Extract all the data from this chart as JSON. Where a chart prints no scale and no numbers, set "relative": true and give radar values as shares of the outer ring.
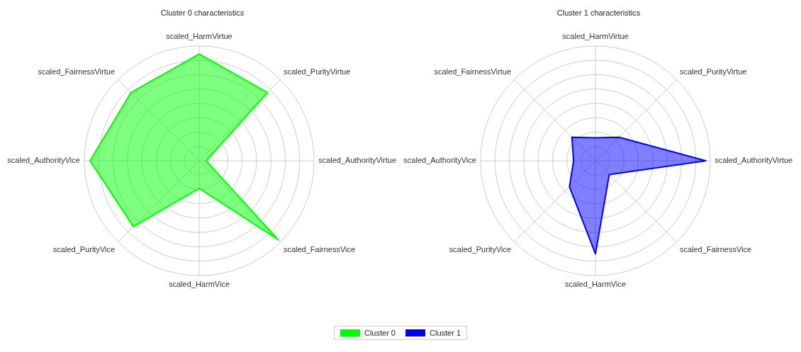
{
  "chart_data": [
    {
      "type": "radar",
      "title": "Cluster 0 characteristics",
      "relative": true,
      "grid": true,
      "legend": "bottom",
      "marker": "none",
      "categories": [
        "scaled_HarmVirtue",
        "scaled_PurityVirtue",
        "scaled_AuthorityVirtue",
        "scaled_FairnessVice",
        "scaled_HarmVice",
        "scaled_PurityVice",
        "scaled_AuthorityVice",
        "scaled_FairnessVirtue"
      ],
      "series": [
        {
          "name": "Cluster 0",
          "color": "#00ff00",
          "values": [
            0.93,
            0.84,
            0.06,
            0.97,
            0.24,
            0.81,
            0.95,
            0.84
          ]
        }
      ]
    },
    {
      "type": "radar",
      "title": "Cluster 1 characteristics",
      "relative": true,
      "grid": true,
      "legend": "bottom",
      "marker": "none",
      "categories": [
        "scaled_HarmVirtue",
        "scaled_PurityVirtue",
        "scaled_AuthorityVirtue",
        "scaled_FairnessVice",
        "scaled_HarmVice",
        "scaled_PurityVice",
        "scaled_AuthorityVice",
        "scaled_FairnessVirtue"
      ],
      "series": [
        {
          "name": "Cluster 1",
          "color": "#0000ff",
          "values": [
            0.2,
            0.29,
            0.96,
            0.17,
            0.81,
            0.32,
            0.19,
            0.29
          ]
        }
      ]
    }
  ]
}
